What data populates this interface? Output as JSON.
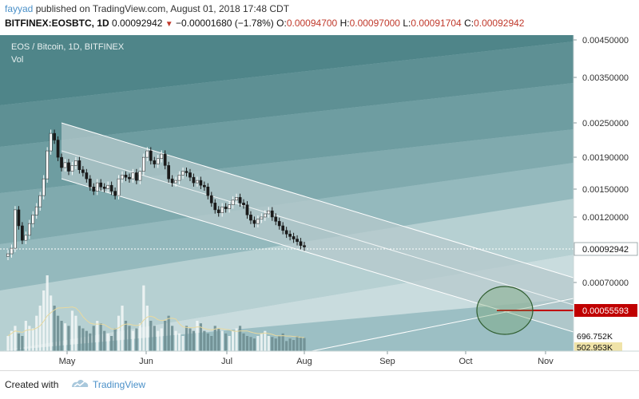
{
  "header": {
    "author": "fayyad",
    "published": "published on TradingView.com, August 01, 2018 17:48 CDT",
    "symbol": "BITFINEX:EOSBTC, 1D",
    "last": "0.00092942",
    "change": "−0.00001680 (−1.78%)",
    "open_label": "O:",
    "open": "0.00094700",
    "high_label": "H:",
    "high": "0.00097000",
    "low_label": "L:",
    "low": "0.00091704",
    "close_label": "C:",
    "close": "0.00092942"
  },
  "legend": {
    "title": "EOS / Bitcoin, 1D, BITFINEX",
    "vol": "Vol"
  },
  "footer": {
    "made_with": "Created with",
    "brand": "TradingView"
  },
  "colors": {
    "background": "#9cbfc4",
    "band_dark": "#5e9094",
    "channel": "#b5c9cc",
    "price_label_red": "#c00000",
    "ellipse": "#2f5d2f"
  },
  "chart_data": {
    "type": "candlestick",
    "price_axis_labels": [
      "0.00450000",
      "0.00350000",
      "0.00250000",
      "0.00190000",
      "0.00150000",
      "0.00120000",
      "0.00070000"
    ],
    "time_axis_labels": [
      "May",
      "Jun",
      "Jul",
      "Aug",
      "Sep",
      "Oct",
      "Nov"
    ],
    "current_price": "0.00092942",
    "target_price": "0.00055593",
    "volume_labels": [
      "696.752K",
      "502.953K"
    ],
    "closes": [
      0.00088,
      0.00092,
      0.00125,
      0.0011,
      0.00098,
      0.00102,
      0.00112,
      0.0012,
      0.00128,
      0.0014,
      0.0016,
      0.002,
      0.0023,
      0.00218,
      0.0019,
      0.00175,
      0.00182,
      0.0017,
      0.00178,
      0.00185,
      0.00172,
      0.00168,
      0.0016,
      0.0015,
      0.00145,
      0.00155,
      0.0015,
      0.00148,
      0.00152,
      0.00145,
      0.0014,
      0.0016,
      0.00165,
      0.00162,
      0.0016,
      0.00168,
      0.00158,
      0.0017,
      0.0019,
      0.002,
      0.00185,
      0.0018,
      0.00188,
      0.00195,
      0.00178,
      0.0016,
      0.00155,
      0.00158,
      0.00165,
      0.0017,
      0.00168,
      0.00162,
      0.00155,
      0.00158,
      0.00152,
      0.0015,
      0.0014,
      0.00132,
      0.00125,
      0.00122,
      0.00128,
      0.00126,
      0.0013,
      0.00135,
      0.00138,
      0.00132,
      0.0013,
      0.0012,
      0.00115,
      0.00112,
      0.00116,
      0.00118,
      0.00121,
      0.00124,
      0.00118,
      0.00114,
      0.0011,
      0.00106,
      0.00103,
      0.00101,
      0.00099,
      0.00097,
      0.00094,
      0.00092942
    ],
    "volumes": [
      0.3,
      0.4,
      0.5,
      0.35,
      0.3,
      0.6,
      0.5,
      0.45,
      0.7,
      0.9,
      1.2,
      1.5,
      1.1,
      0.9,
      0.7,
      0.6,
      0.55,
      0.5,
      0.8,
      0.7,
      0.5,
      0.45,
      0.4,
      0.35,
      0.5,
      0.6,
      0.55,
      0.4,
      0.35,
      0.3,
      0.45,
      0.7,
      0.9,
      0.6,
      0.5,
      0.4,
      0.45,
      0.55,
      1.3,
      0.9,
      0.6,
      0.5,
      0.4,
      0.45,
      0.6,
      0.7,
      0.5,
      0.4,
      0.35,
      0.3,
      0.5,
      0.45,
      0.4,
      0.6,
      0.55,
      0.4,
      0.35,
      0.3,
      0.5,
      0.45,
      0.4,
      0.35,
      0.3,
      0.4,
      0.45,
      0.5,
      0.35,
      0.3,
      0.28,
      0.25,
      0.3,
      0.35,
      0.4,
      0.3,
      0.28,
      0.25,
      0.3,
      0.35,
      0.2,
      0.25,
      0.22,
      0.3,
      0.28,
      0.26
    ]
  }
}
